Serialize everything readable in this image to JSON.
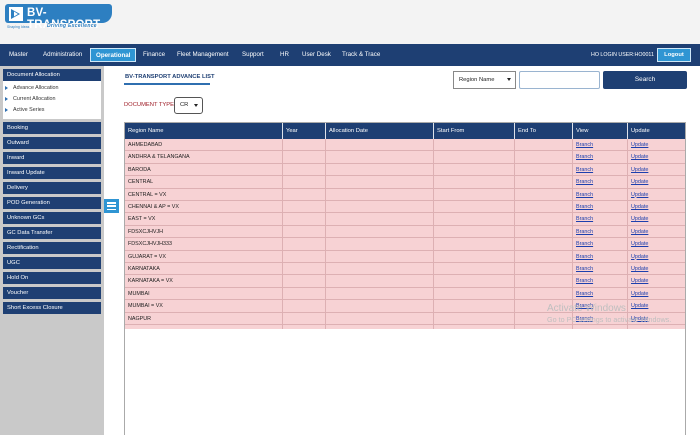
{
  "brand": {
    "name": "BV-TRANSPORT",
    "tagline": "Driving Excellence",
    "sub_tagline": "Shaping Ideas"
  },
  "nav": {
    "items": [
      "Master",
      "Administration",
      "Operational",
      "Finance",
      "Fleet Management",
      "Support",
      "HR",
      "User Desk",
      "Track & Trace"
    ],
    "active": "Operational",
    "login_user": "HO LOGIN USER:HO0011",
    "logout_label": "Logout"
  },
  "sidebar": {
    "section": "Document Allocation",
    "sub_items": [
      "Advance Allocation",
      "Current Allocation",
      "Active Series"
    ],
    "items": [
      "Booking",
      "Outward",
      "Inward",
      "Inward Update",
      "Delivery",
      "POD Generation",
      "Unknown GCs",
      "GC Data Transfer",
      "Rectification",
      "UGC",
      "Hold On",
      "Voucher",
      "Short Excess Closure"
    ]
  },
  "page": {
    "title": "BV-TRANSPORT ADVANCE LIST",
    "region_select": "Region Name",
    "search_value": "",
    "search_button": "Search",
    "doc_type_label": "DOCUMENT TYPE:",
    "doc_type_value": "CR"
  },
  "table": {
    "headers": [
      "Region Name",
      "Year",
      "Allocation Date",
      "Start From",
      "End To",
      "View",
      "Update"
    ],
    "rows": [
      {
        "region": "AHMEDABAD",
        "view": "Branch",
        "update": "Update"
      },
      {
        "region": "ANDHRA & TELANGANA",
        "view": "Branch",
        "update": "Update"
      },
      {
        "region": "BARODA",
        "view": "Branch",
        "update": "Update"
      },
      {
        "region": "CENTRAL",
        "view": "Branch",
        "update": "Update"
      },
      {
        "region": "CENTRAL = VX",
        "view": "Branch",
        "update": "Update"
      },
      {
        "region": "CHENNAI & AP = VX",
        "view": "Branch",
        "update": "Update"
      },
      {
        "region": "EAST = VX",
        "view": "Branch",
        "update": "Update"
      },
      {
        "region": "FDSXCJHVJH",
        "view": "Branch",
        "update": "Update"
      },
      {
        "region": "FDSXCJHVJH333",
        "view": "Branch",
        "update": "Update"
      },
      {
        "region": "GUJARAT = VX",
        "view": "Branch",
        "update": "Update"
      },
      {
        "region": "KARNATAKA",
        "view": "Branch",
        "update": "Update"
      },
      {
        "region": "KARNATAKA = VX",
        "view": "Branch",
        "update": "Update"
      },
      {
        "region": "MUMBAI",
        "view": "Branch",
        "update": "Update"
      },
      {
        "region": "MUMBAI = VX",
        "view": "Branch",
        "update": "Update"
      },
      {
        "region": "NAGPUR",
        "view": "Branch",
        "update": "Update"
      }
    ]
  },
  "watermark": {
    "line1": "Activate Windows",
    "line2": "Go to PC settings to activate Windows."
  },
  "colors": {
    "navy": "#1e3f73",
    "accent_blue": "#2f95d3",
    "row_pink": "#f7d2d4",
    "doc_label_red": "#a0202a"
  }
}
